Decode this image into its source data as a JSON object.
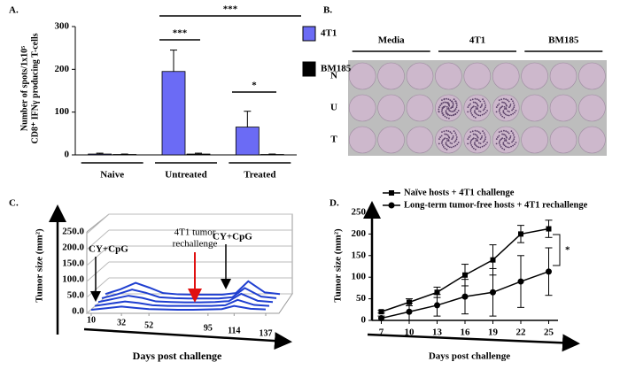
{
  "chart_data": [
    {
      "type": "bar",
      "panel_label": "A.",
      "ylabel": [
        "Number of spots/1x10⁵",
        "CD8⁺ IFNγ producing T-cells"
      ],
      "categories": [
        "Naive",
        "Untreated",
        "Treated"
      ],
      "series": [
        {
          "name": "4T1",
          "color": "#6b6bf5",
          "values": [
            2,
            195,
            65
          ],
          "errors": [
            2,
            50,
            37
          ]
        },
        {
          "name": "BM185",
          "color": "#000000",
          "values": [
            1,
            2,
            1
          ],
          "errors": [
            1,
            2,
            1
          ]
        }
      ],
      "ylim": [
        0,
        300
      ],
      "yticks": [
        0,
        100,
        200,
        300
      ],
      "annotations": [
        "***",
        "***",
        "*"
      ]
    },
    {
      "type": "line3d",
      "panel_label": "C.",
      "ylabel": "Tumor size (mm²)",
      "xlabel": "Days post challenge",
      "x": [
        10,
        21,
        32,
        42,
        52,
        63,
        73,
        84,
        95,
        105,
        114,
        126,
        137
      ],
      "series": [
        {
          "color": "#1f3fd0",
          "values": [
            5,
            20,
            40,
            25,
            8,
            4,
            3,
            3,
            3,
            8,
            45,
            10,
            5
          ]
        },
        {
          "color": "#1f3fd0",
          "values": [
            3,
            15,
            30,
            20,
            6,
            3,
            2,
            2,
            2,
            6,
            35,
            8,
            3
          ]
        },
        {
          "color": "#1f3fd0",
          "values": [
            2,
            12,
            22,
            15,
            4,
            2,
            1,
            1,
            2,
            5,
            28,
            6,
            2
          ]
        },
        {
          "color": "#1f3fd0",
          "values": [
            1,
            8,
            15,
            10,
            3,
            1,
            1,
            1,
            1,
            3,
            20,
            4,
            1
          ]
        },
        {
          "color": "#1f3fd0",
          "values": [
            0,
            5,
            10,
            6,
            2,
            1,
            0,
            0,
            1,
            2,
            12,
            3,
            1
          ]
        }
      ],
      "xlim": [
        10,
        137
      ],
      "xticks": [
        10,
        32,
        52,
        95,
        114,
        137
      ],
      "ylim": [
        0,
        250
      ],
      "yticks": [
        {
          "value": 0,
          "label": "0.0"
        },
        {
          "value": 50,
          "label": "50.0"
        },
        {
          "value": 100,
          "label": "100.0"
        },
        {
          "value": 150,
          "label": "150.0"
        },
        {
          "value": 200,
          "label": "200.0"
        },
        {
          "value": 250,
          "label": "250.0"
        }
      ],
      "annotations": [
        "CY+CpG",
        [
          "4T1 tumor",
          "rechallenge"
        ],
        "CY+CpG"
      ]
    },
    {
      "type": "line",
      "panel_label": "D.",
      "ylabel": "Tumor size (mm²)",
      "xlabel": "Days post challenge",
      "x": [
        7,
        10,
        13,
        16,
        19,
        22,
        25
      ],
      "series": [
        {
          "name": "Naïve hosts + 4T1 challenge",
          "color": "#000000",
          "marker": "square",
          "values": [
            20,
            42,
            65,
            105,
            140,
            200,
            212
          ],
          "errors": [
            3,
            8,
            12,
            25,
            35,
            20,
            20
          ]
        },
        {
          "name": "Long-term tumor-free hosts + 4T1 rechallenge",
          "color": "#000000",
          "marker": "circle",
          "values": [
            5,
            20,
            35,
            55,
            65,
            90,
            113
          ],
          "errors": [
            5,
            20,
            25,
            40,
            55,
            60,
            55
          ]
        }
      ],
      "xlim": [
        6,
        26
      ],
      "xticks": [
        7,
        10,
        13,
        16,
        19,
        22,
        25
      ],
      "ylim": [
        0,
        250
      ],
      "yticks": [
        0,
        50,
        100,
        150,
        200,
        250
      ],
      "annotations": [
        "*"
      ]
    }
  ],
  "image_panel": {
    "panel_label": "B.",
    "columns": [
      "Media",
      "4T1",
      "BM185"
    ],
    "rows": [
      "N",
      "U",
      "T"
    ]
  }
}
